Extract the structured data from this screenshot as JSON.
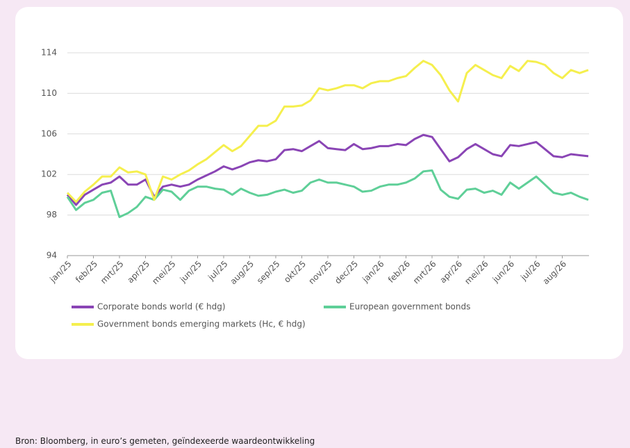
{
  "chart_data": {
    "type": "line",
    "categories": [
      "jan/25",
      null,
      null,
      "feb/25",
      null,
      null,
      "mrt/25",
      null,
      null,
      "apr/25",
      null,
      null,
      "mei/25",
      null,
      null,
      "jun/25",
      null,
      null,
      "jul/25",
      null,
      null,
      "aug/25",
      null,
      null,
      "sep/25",
      null,
      null,
      "okt/25",
      null,
      null,
      "nov/25",
      null,
      null,
      "dec/25",
      null,
      null,
      "jan/26",
      null,
      null,
      "feb/26",
      null,
      null,
      "mrt/26",
      null,
      null,
      "apr/26",
      null,
      null,
      "mei/26",
      null,
      null,
      "jun/26",
      null,
      null,
      "jul/26",
      null,
      null,
      "aug/26",
      null,
      null,
      null
    ],
    "series": [
      {
        "name": "Corporate bonds world (€ hdg)",
        "color": "#8a45b5",
        "values": [
          100.0,
          99.0,
          100.0,
          100.5,
          101.0,
          101.2,
          101.8,
          101.0,
          101.0,
          101.5,
          99.8,
          100.8,
          101.0,
          100.8,
          101.0,
          101.5,
          101.9,
          102.3,
          102.8,
          102.5,
          102.8,
          103.2,
          103.4,
          103.3,
          103.5,
          104.4,
          104.5,
          104.3,
          104.8,
          105.3,
          104.6,
          104.5,
          104.4,
          105.0,
          104.5,
          104.6,
          104.8,
          104.8,
          105.0,
          104.9,
          105.5,
          105.9,
          105.7,
          104.5,
          103.3,
          103.7,
          104.5,
          105.0,
          104.5,
          104.0,
          103.8,
          104.9,
          104.8,
          105.0,
          105.2,
          104.5,
          103.8,
          103.7,
          104.0,
          103.9,
          103.8
        ]
      },
      {
        "name": "European government bonds",
        "color": "#5fcf98",
        "values": [
          99.8,
          98.5,
          99.2,
          99.5,
          100.2,
          100.4,
          97.8,
          98.2,
          98.8,
          99.8,
          99.5,
          100.5,
          100.3,
          99.5,
          100.4,
          100.8,
          100.8,
          100.6,
          100.5,
          100.0,
          100.6,
          100.2,
          99.9,
          100.0,
          100.3,
          100.5,
          100.2,
          100.4,
          101.2,
          101.5,
          101.2,
          101.2,
          101.0,
          100.8,
          100.3,
          100.4,
          100.8,
          101.0,
          101.0,
          101.2,
          101.6,
          102.3,
          102.4,
          100.5,
          99.8,
          99.6,
          100.5,
          100.6,
          100.2,
          100.4,
          100.0,
          101.2,
          100.6,
          101.2,
          101.8,
          101.0,
          100.2,
          100.0,
          100.2,
          99.8,
          99.5
        ]
      },
      {
        "name": "Government bonds emerging markets (Hc, € hdg)",
        "color": "#f5ef4e",
        "values": [
          100.2,
          99.3,
          100.3,
          101.0,
          101.8,
          101.8,
          102.7,
          102.2,
          102.3,
          102.0,
          99.5,
          101.8,
          101.5,
          102.0,
          102.4,
          103.0,
          103.5,
          104.2,
          104.9,
          104.3,
          104.8,
          105.8,
          106.8,
          106.8,
          107.3,
          108.7,
          108.7,
          108.8,
          109.3,
          110.5,
          110.3,
          110.5,
          110.8,
          110.8,
          110.5,
          111.0,
          111.2,
          111.2,
          111.5,
          111.7,
          112.5,
          113.2,
          112.8,
          111.8,
          110.3,
          109.2,
          112.0,
          112.8,
          112.3,
          111.8,
          111.5,
          112.7,
          112.2,
          113.2,
          113.1,
          112.8,
          112.0,
          111.5,
          112.3,
          112.0,
          112.3
        ]
      }
    ],
    "ylim": [
      94,
      114
    ],
    "yticks": [
      94,
      98,
      102,
      106,
      110,
      114
    ],
    "grid": true
  },
  "source": "Bron: Bloomberg, in euro’s gemeten, geïndexeerde waardeontwikkeling"
}
